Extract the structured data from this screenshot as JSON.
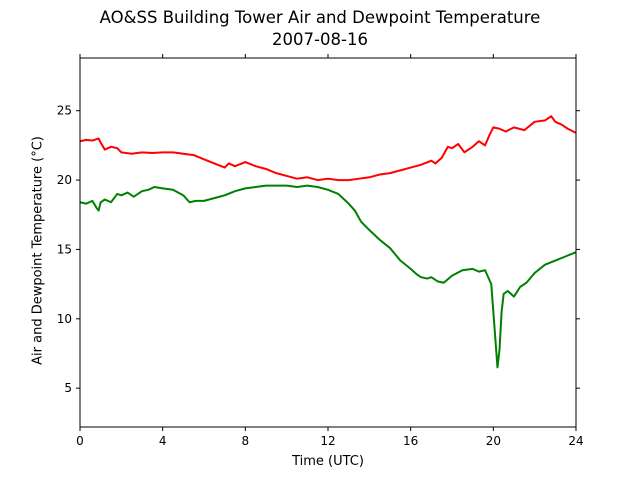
{
  "chart_data": {
    "type": "line",
    "title": "AO&SS Building Tower Air and Dewpoint Temperature",
    "subtitle": "2007-08-16",
    "xlabel": "Time (UTC)",
    "ylabel": "Air and Dewpoint Temperature (°C)",
    "xlim": [
      0,
      24
    ],
    "ylim": [
      2.2,
      28.8
    ],
    "xticks": [
      0,
      4,
      8,
      12,
      16,
      20,
      24
    ],
    "yticks": [
      5,
      10,
      15,
      20,
      25
    ],
    "grid": false,
    "legend": false,
    "series": [
      {
        "color": "#ff0000",
        "x": [
          0,
          0.3,
          0.6,
          0.9,
          1.0,
          1.2,
          1.5,
          1.8,
          2.0,
          2.5,
          3.0,
          3.5,
          4.0,
          4.5,
          5.0,
          5.5,
          6.0,
          6.5,
          7.0,
          7.2,
          7.5,
          8.0,
          8.5,
          9.0,
          9.5,
          10.0,
          10.5,
          11.0,
          11.5,
          12.0,
          12.5,
          13.0,
          13.5,
          14.0,
          14.5,
          15.0,
          15.5,
          16.0,
          16.5,
          17.0,
          17.2,
          17.5,
          17.8,
          18.0,
          18.3,
          18.6,
          19.0,
          19.3,
          19.6,
          19.8,
          20.0,
          20.3,
          20.6,
          21.0,
          21.5,
          22.0,
          22.5,
          22.8,
          23.0,
          23.3,
          23.6,
          24.0
        ],
        "y": [
          22.8,
          22.9,
          22.85,
          23.0,
          22.7,
          22.2,
          22.4,
          22.3,
          22.0,
          21.9,
          22.0,
          21.95,
          22.0,
          22.0,
          21.9,
          21.8,
          21.5,
          21.2,
          20.9,
          21.2,
          21.0,
          21.3,
          21.0,
          20.8,
          20.5,
          20.3,
          20.1,
          20.2,
          20.0,
          20.1,
          20.0,
          20.0,
          20.1,
          20.2,
          20.4,
          20.5,
          20.7,
          20.9,
          21.1,
          21.4,
          21.2,
          21.6,
          22.4,
          22.3,
          22.6,
          22.0,
          22.4,
          22.8,
          22.5,
          23.2,
          23.8,
          23.7,
          23.5,
          23.8,
          23.6,
          24.2,
          24.3,
          24.6,
          24.2,
          24.0,
          23.7,
          23.4
        ]
      },
      {
        "color": "#008000",
        "x": [
          0,
          0.3,
          0.6,
          0.8,
          0.9,
          1.0,
          1.2,
          1.5,
          1.8,
          2.0,
          2.3,
          2.6,
          3.0,
          3.3,
          3.6,
          4.0,
          4.5,
          5.0,
          5.3,
          5.6,
          6.0,
          6.5,
          7.0,
          7.5,
          8.0,
          8.5,
          9.0,
          9.5,
          10.0,
          10.5,
          11.0,
          11.5,
          12.0,
          12.5,
          13.0,
          13.3,
          13.6,
          14.0,
          14.5,
          15.0,
          15.5,
          16.0,
          16.3,
          16.5,
          16.8,
          17.0,
          17.3,
          17.6,
          18.0,
          18.5,
          19.0,
          19.3,
          19.6,
          19.9,
          20.0,
          20.1,
          20.2,
          20.3,
          20.4,
          20.5,
          20.7,
          21.0,
          21.3,
          21.6,
          22.0,
          22.5,
          23.0,
          23.5,
          24.0
        ],
        "y": [
          18.4,
          18.3,
          18.5,
          18.0,
          17.8,
          18.4,
          18.6,
          18.4,
          19.0,
          18.9,
          19.1,
          18.8,
          19.2,
          19.3,
          19.5,
          19.4,
          19.3,
          18.9,
          18.4,
          18.5,
          18.5,
          18.7,
          18.9,
          19.2,
          19.4,
          19.5,
          19.6,
          19.6,
          19.6,
          19.5,
          19.6,
          19.5,
          19.3,
          19.0,
          18.3,
          17.8,
          17.0,
          16.4,
          15.7,
          15.1,
          14.2,
          13.6,
          13.2,
          13.0,
          12.9,
          13.0,
          12.7,
          12.6,
          13.1,
          13.5,
          13.6,
          13.4,
          13.5,
          12.5,
          10.5,
          8.5,
          6.5,
          7.8,
          10.5,
          11.8,
          12.0,
          11.6,
          12.3,
          12.6,
          13.3,
          13.9,
          14.2,
          14.5,
          14.8
        ]
      }
    ]
  }
}
